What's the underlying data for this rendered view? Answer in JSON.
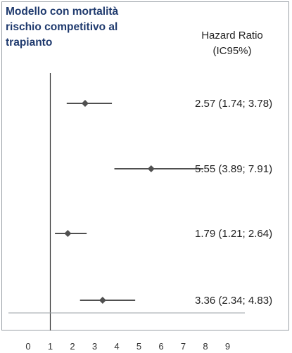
{
  "title_lines": [
    "Modello con mortalità",
    "rischio competitivo al",
    "trapianto"
  ],
  "header": {
    "line1": "Hazard Ratio",
    "line2": "(IC95%)"
  },
  "chart_data": {
    "type": "forest",
    "reference_value": 1,
    "xlim": [
      0,
      9
    ],
    "x_ticks": [
      0,
      1,
      2,
      3,
      4,
      5,
      6,
      7,
      8,
      9
    ],
    "rows": [
      {
        "estimate": 2.57,
        "lower": 1.74,
        "upper": 3.78,
        "label": "2.57 (1.74; 3.78)"
      },
      {
        "estimate": 5.55,
        "lower": 3.89,
        "upper": 7.91,
        "label": "5.55 (3.89; 7.91)"
      },
      {
        "estimate": 1.79,
        "lower": 1.21,
        "upper": 2.64,
        "label": "1.79 (1.21; 2.64)"
      },
      {
        "estimate": 3.36,
        "lower": 2.34,
        "upper": 4.83,
        "label": "3.36 (2.34; 4.83)"
      }
    ]
  },
  "colors": {
    "title": "#1f3a6e",
    "marker": "#505050",
    "line": "#505050",
    "axis": "#9aa0a6"
  }
}
